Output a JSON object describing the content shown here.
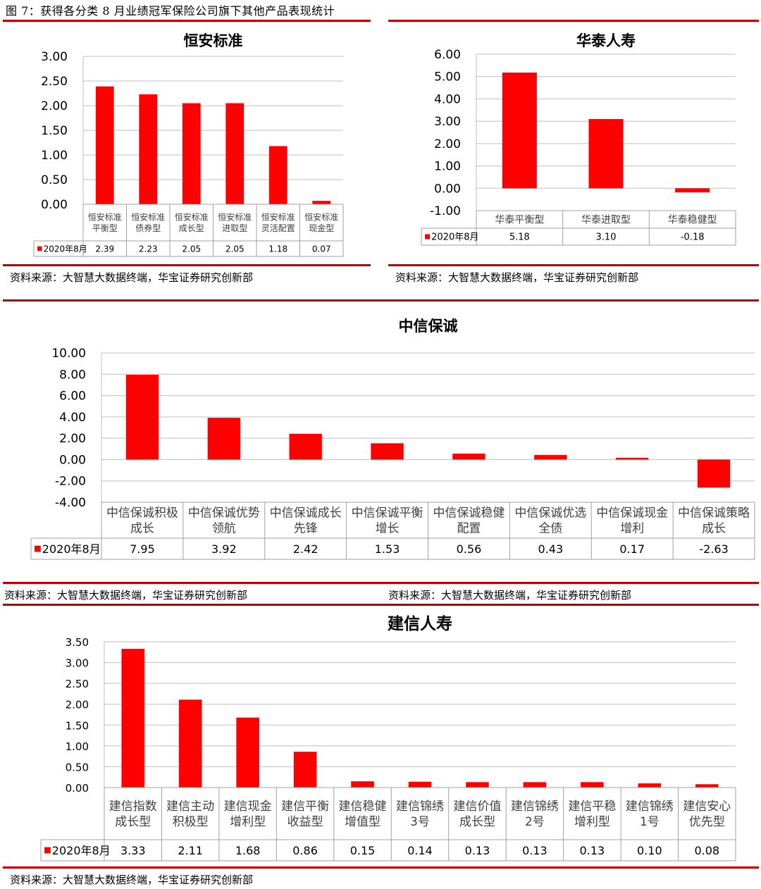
{
  "figure_title": "图 7：获得各分类 8 月业绩冠军保险公司旗下其他产品表现统计",
  "sources": [
    "资料来源：大智慧大数据终端，华宝证券研究创新部",
    "资料来源：大智慧大数据终端，华宝证券研究创新部",
    "资料来源：大智慧大数据终端，华宝证券研究创新部",
    "资料来源：大智慧大数据终端，华宝证券研究创新部",
    "资料来源：大智慧大数据终端，华宝证券研究创新部"
  ],
  "colors": {
    "bar": "#ff0000",
    "rule": "#c00000",
    "grid": "#bfbfbf",
    "table": "#a0a0a0"
  },
  "chart_data": [
    {
      "type": "bar",
      "title": "恒安标准",
      "series_name": "2020年8月",
      "categories": [
        "恒安标准平衡型",
        "恒安标准债券型",
        "恒安标准成长型",
        "恒安标准进取型",
        "恒安标准灵活配置",
        "恒安标准现金型"
      ],
      "values": [
        2.39,
        2.23,
        2.05,
        2.05,
        1.18,
        0.07
      ],
      "value_labels": [
        "2.39",
        "2.23",
        "2.05",
        "2.05",
        "1.18",
        "0.07"
      ],
      "yticks": [
        "3.00",
        "2.50",
        "2.00",
        "1.50",
        "1.00",
        "0.50",
        "0.00"
      ],
      "ylim": [
        0,
        3
      ]
    },
    {
      "type": "bar",
      "title": "华泰人寿",
      "series_name": "2020年8月",
      "categories": [
        "华泰平衡型",
        "华泰进取型",
        "华泰稳健型"
      ],
      "values": [
        5.18,
        3.1,
        -0.18
      ],
      "value_labels": [
        "5.18",
        "3.10",
        "-0.18"
      ],
      "yticks": [
        "6.00",
        "5.00",
        "4.00",
        "3.00",
        "2.00",
        "1.00",
        "0.00",
        "-1.00"
      ],
      "ylim": [
        -1,
        6
      ]
    },
    {
      "type": "bar",
      "title": "中信保诚",
      "series_name": "2020年8月",
      "categories": [
        "中信保诚积极成长",
        "中信保诚优势领航",
        "中信保诚成长先锋",
        "中信保诚平衡增长",
        "中信保诚稳健配置",
        "中信保诚优选全债",
        "中信保诚现金增利",
        "中信保诚策略成长"
      ],
      "values": [
        7.95,
        3.92,
        2.42,
        1.53,
        0.56,
        0.43,
        0.17,
        -2.63
      ],
      "value_labels": [
        "7.95",
        "3.92",
        "2.42",
        "1.53",
        "0.56",
        "0.43",
        "0.17",
        "-2.63"
      ],
      "yticks": [
        "10.00",
        "8.00",
        "6.00",
        "4.00",
        "2.00",
        "0.00",
        "-2.00",
        "-4.00"
      ],
      "ylim": [
        -4,
        10
      ]
    },
    {
      "type": "bar",
      "title": "建信人寿",
      "series_name": "2020年8月",
      "categories": [
        "建信指数成长型",
        "建信主动积极型",
        "建信现金增利型",
        "建信平衡收益型",
        "建信稳健增值型",
        "建信锦绣3号",
        "建信价值成长型",
        "建信锦绣2号",
        "建信平稳增利型",
        "建信锦绣1号",
        "建信安心优先型"
      ],
      "values": [
        3.33,
        2.11,
        1.68,
        0.86,
        0.15,
        0.14,
        0.13,
        0.13,
        0.13,
        0.1,
        0.08
      ],
      "value_labels": [
        "3.33",
        "2.11",
        "1.68",
        "0.86",
        "0.15",
        "0.14",
        "0.13",
        "0.13",
        "0.13",
        "0.10",
        "0.08"
      ],
      "yticks": [
        "3.50",
        "3.00",
        "2.50",
        "2.00",
        "1.50",
        "1.00",
        "0.50",
        "0.00"
      ],
      "ylim": [
        0,
        3.5
      ]
    }
  ]
}
